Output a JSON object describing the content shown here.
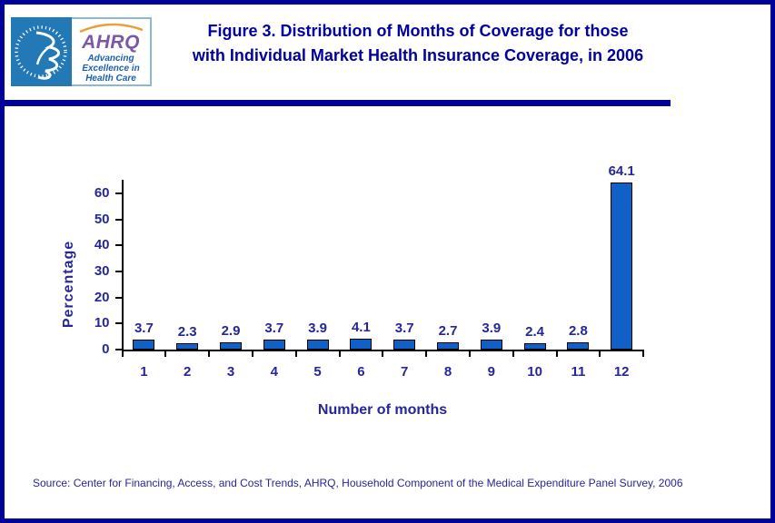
{
  "header": {
    "logo": {
      "acronym": "AHRQ",
      "tagline_line1": "Advancing",
      "tagline_line2": "Excellence in",
      "tagline_line3": "Health Care"
    },
    "title_line1": "Figure 3. Distribution of Months of Coverage for those",
    "title_line2": "with Individual Market Health Insurance Coverage, in 2006"
  },
  "chart_data": {
    "type": "bar",
    "categories": [
      "1",
      "2",
      "3",
      "4",
      "5",
      "6",
      "7",
      "8",
      "9",
      "10",
      "11",
      "12"
    ],
    "values": [
      3.7,
      2.3,
      2.9,
      3.7,
      3.9,
      4.1,
      3.7,
      2.7,
      3.9,
      2.4,
      2.8,
      64.1
    ],
    "title": "Figure 3. Distribution of Months of Coverage for those with Individual Market Health Insurance Coverage, in 2006",
    "xlabel": "Number of months",
    "ylabel": "Percentage",
    "ylim": [
      0,
      60
    ],
    "yticks": [
      0,
      10,
      20,
      30,
      40,
      50,
      60
    ],
    "grid": false,
    "legend": false,
    "value_labels": true
  },
  "footer": {
    "source": "Source: Center for Financing, Access, and Cost Trends, AHRQ, Household Component of the Medical Expenditure Panel Survey, 2006"
  },
  "colors": {
    "frame_navy": "#00009B",
    "title_navy": "#0000A0",
    "chart_text_navy": "#26269B",
    "bar_fill_blue": "#1160C8",
    "axis_black": "#000000",
    "hhs_blue": "#2379B6",
    "ahrq_purple": "#7B57A8",
    "ahrq_orange": "#E8A03C",
    "tagline_blue": "#1B5FAE",
    "logo_border_blue": "#8CB8D8"
  }
}
